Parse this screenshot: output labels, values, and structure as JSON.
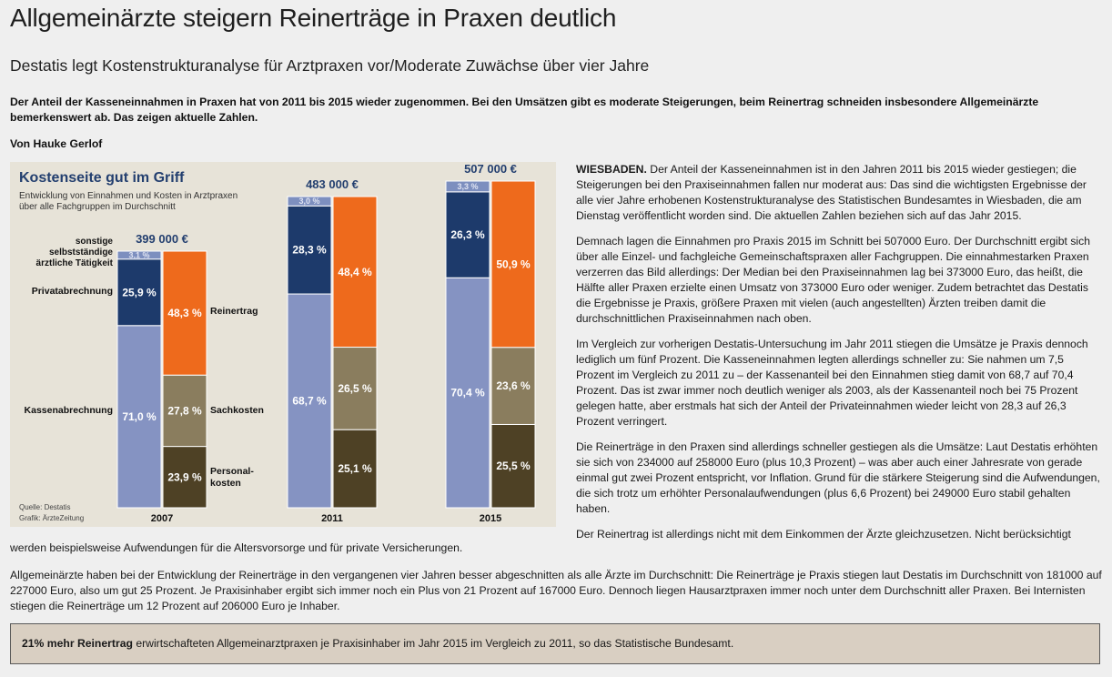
{
  "article": {
    "headline": "Allgemeinärzte steigern Reinerträge in Praxen deutlich",
    "subtitle": "Destatis legt Kostenstrukturanalyse für Arztpraxen vor/Moderate Zuwächse über vier Jahre",
    "lead": "Der Anteil der Kasseneinnahmen in Praxen hat von 2011 bis 2015 wieder zugenommen. Bei den Umsätzen gibt es moderate Steigerungen, beim Reinertrag schneiden insbesondere Allgemeinärzte bemerkenswert ab. Das zeigen aktuelle Zahlen.",
    "author": "Von Hauke Gerlof",
    "dateline": "WIESBADEN.",
    "p1_rest": " Der Anteil der Kasseneinnahmen ist in den Jahren 2011 bis 2015 wieder gestiegen; die Steigerungen bei den Praxiseinnahmen fallen nur moderat aus: Das sind die wichtigsten Ergebnisse der alle vier Jahre erhobenen Kostenstrukturanalyse des Statistischen Bundesamtes in Wiesbaden, die am Dienstag veröffentlicht worden sind. Die aktuellen Zahlen beziehen sich auf das Jahr 2015.",
    "p2": "Demnach lagen die Einnahmen pro Praxis 2015 im Schnitt bei 507000 Euro. Der Durchschnitt ergibt sich über alle Einzel- und fachgleiche Gemeinschaftspraxen aller Fachgruppen. Die einnahmestarken Praxen verzerren das Bild allerdings: Der Median bei den Praxiseinnahmen lag bei 373000 Euro, das heißt, die Hälfte aller Praxen erzielte einen Umsatz von 373000 Euro oder weniger. Zudem betrachtet das Destatis die Ergebnisse je Praxis, größere Praxen mit vielen (auch angestellten) Ärzten treiben damit die durchschnittlichen Praxiseinnahmen nach oben.",
    "p3": "Im Vergleich zur vorherigen Destatis-Untersuchung im Jahr 2011 stiegen die Umsätze je Praxis dennoch lediglich um fünf Prozent. Die Kasseneinnahmen legten allerdings schneller zu: Sie nahmen um 7,5 Prozent im Vergleich zu 2011 zu – der Kassenanteil bei den Einnahmen stieg damit von 68,7 auf 70,4 Prozent. Das ist zwar immer noch deutlich weniger als 2003, als der Kassenanteil noch bei 75 Prozent gelegen hatte, aber erstmals hat sich der Anteil der Privateinnahmen wieder leicht von 28,3 auf 26,3 Prozent verringert.",
    "p4": "Die Reinerträge in den Praxen sind allerdings schneller gestiegen als die Umsätze: Laut Destatis erhöhten sie sich von 234000 auf 258000 Euro (plus 10,3 Prozent) – was aber auch einer Jahresrate von gerade einmal gut zwei Prozent entspricht, vor Inflation. Grund für die stärkere Steigerung sind die Aufwendungen, die sich trotz um erhöhter Personalaufwendungen (plus 6,6 Prozent) bei 249000 Euro stabil gehalten haben.",
    "p5_start": "Der Reinertrag ist allerdings nicht mit dem Einkommen der Ärzte gleichzusetzen. Nicht berücksichtigt",
    "p5_end": "werden beispielsweise Aufwendungen für die Altersvorsorge und für private Versicherungen.",
    "p6": "Allgemeinärzte haben bei der Entwicklung der Reinerträge in den vergangenen vier Jahren besser abgeschnitten als alle Ärzte im Durchschnitt: Die Reinerträge je Praxis stiegen laut Destatis im Durchschnitt von 181000 auf 227000 Euro, also um gut 25 Prozent. Je Praxisinhaber ergibt sich immer noch ein Plus von 21 Prozent auf 167000 Euro. Dennoch liegen Hausarztpraxen immer noch unter dem Durchschnitt aller Praxen. Bei Internisten stiegen die Reinerträge um 12 Prozent auf 206000 Euro je Inhaber.",
    "callout_bold": "21% mehr Reinertrag",
    "callout_rest": " erwirtschafteten Allgemeinarztpraxen je Praxisinhaber im Jahr 2015 im Vergleich zu 2011, so das Statistische Bundesamt."
  },
  "colors": {
    "kasse": "#8593c2",
    "privat": "#1d3a6b",
    "sonstige": "#7d8fbf",
    "reinertrag": "#ee6a1c",
    "sachkosten": "#8a7d5e",
    "personal": "#4e4125",
    "chart_bg": "#e7e3d8",
    "callout_bg": "#d9cfc2"
  },
  "chart_data": {
    "type": "bar",
    "title": "Kostenseite gut im Griff",
    "subtitle": "Entwicklung von Einnahmen und Kosten in Arztpraxen über alle Fachgruppen im Durchschnitt",
    "source": "Quelle: Destatis",
    "credit": "Grafik: ÄrzteZeitung",
    "categories": [
      "2007",
      "2011",
      "2015"
    ],
    "totals": [
      "399 000 €",
      "483 000 €",
      "507 000 €"
    ],
    "income_stack": {
      "series": [
        {
          "name": "Kassenabrechnung",
          "values": [
            71.0,
            68.7,
            70.4
          ],
          "labels": [
            "71,0 %",
            "68,7 %",
            "70,4 %"
          ],
          "color": "#8593c2"
        },
        {
          "name": "Privatabrechnung",
          "values": [
            25.9,
            28.3,
            26.3
          ],
          "labels": [
            "25,9 %",
            "28,3 %",
            "26,3 %"
          ],
          "color": "#1d3a6b"
        },
        {
          "name": "sonstige selbstständige ärztliche Tätigkeit",
          "values": [
            3.1,
            3.0,
            3.3
          ],
          "labels": [
            "3,1 %",
            "3,0 %",
            "3,3 %"
          ],
          "color": "#7d8fbf"
        }
      ]
    },
    "cost_stack": {
      "series": [
        {
          "name": "Personalkosten",
          "values": [
            23.9,
            25.1,
            25.5
          ],
          "labels": [
            "23,9 %",
            "25,1 %",
            "25,5 %"
          ],
          "color": "#4e4125"
        },
        {
          "name": "Sachkosten",
          "values": [
            27.8,
            26.5,
            23.6
          ],
          "labels": [
            "27,8 %",
            "26,5 %",
            "23,6 %"
          ],
          "color": "#8a7d5e"
        },
        {
          "name": "Reinertrag",
          "values": [
            48.3,
            48.4,
            50.9
          ],
          "labels": [
            "48,3 %",
            "48,4 %",
            "50,9 %"
          ],
          "color": "#ee6a1c"
        }
      ]
    },
    "left_labels": [
      "sonstige",
      "selbstständige",
      "ärztliche Tätigkeit",
      "Privatabrechnung",
      "Kassenabrechnung"
    ],
    "right_labels": [
      "Reinertrag",
      "Sachkosten",
      "Personal-",
      "kosten"
    ]
  }
}
